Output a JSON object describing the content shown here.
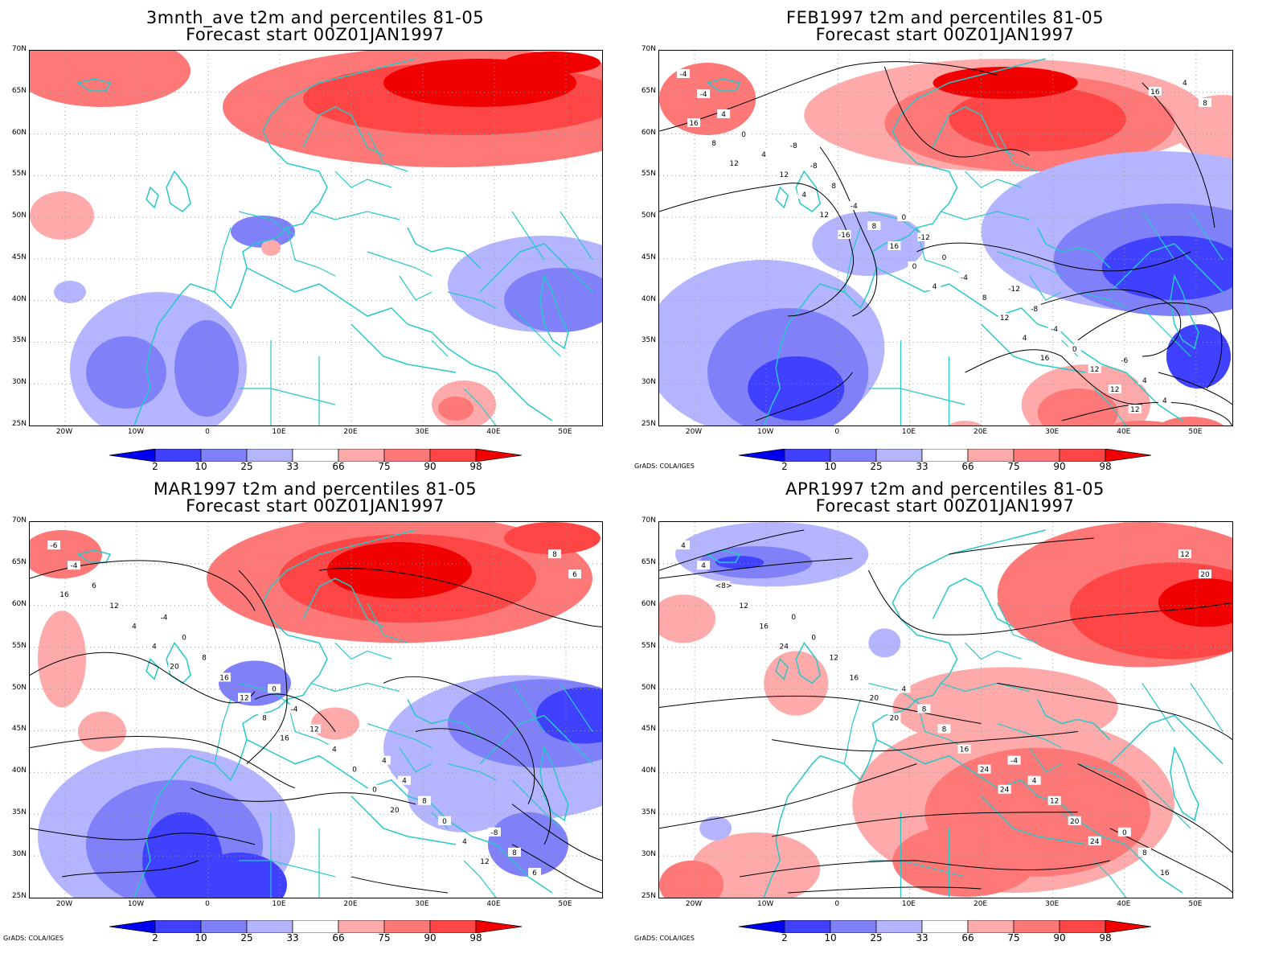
{
  "panels": [
    {
      "title1": "3mnth_ave t2m and percentiles 81-05",
      "title2": "Forecast start 00Z01JAN1997",
      "credit": ""
    },
    {
      "title1": "FEB1997 t2m and percentiles 81-05",
      "title2": "Forecast start 00Z01JAN1997",
      "credit": "GrADS: COLA/IGES"
    },
    {
      "title1": "MAR1997 t2m and percentiles 81-05",
      "title2": "Forecast start 00Z01JAN1997",
      "credit": "GrADS: COLA/IGES"
    },
    {
      "title1": "APR1997 t2m and percentiles 81-05",
      "title2": "Forecast start 00Z01JAN1997",
      "credit": "GrADS: COLA/IGES"
    }
  ],
  "lat_labels": [
    "70N",
    "65N",
    "60N",
    "55N",
    "50N",
    "45N",
    "40N",
    "35N",
    "30N",
    "25N"
  ],
  "lon_labels": [
    "20W",
    "10W",
    "0",
    "10E",
    "20E",
    "30E",
    "40E",
    "50E"
  ],
  "colorbar": {
    "labels": [
      "2",
      "10",
      "25",
      "33",
      "66",
      "75",
      "90",
      "98"
    ],
    "colors": [
      "#0000f0",
      "#4040ff",
      "#8080f8",
      "#b4b4ff",
      "#ffffff",
      "#ffaaaa",
      "#ff7878",
      "#ff4646",
      "#f00000"
    ]
  },
  "colors": {
    "coast": "#28c8c8",
    "contour": "#000000"
  },
  "contour_labels": {
    "p1": [],
    "p2": [
      "-4",
      "-8",
      "0",
      "-12",
      "-6",
      "-4",
      "-8",
      "-12",
      "-8",
      "4",
      "4",
      "8",
      "0",
      "-4",
      "4",
      "0",
      "-4",
      "-4",
      "0",
      "4",
      "4",
      "8",
      "8",
      "12",
      "8",
      "12",
      "16",
      "12",
      "12",
      "16",
      "4",
      "0",
      "4",
      "12",
      "8",
      "12",
      "4",
      "16",
      "16",
      "12",
      "-16"
    ],
    "p3": [
      "-6",
      "-4",
      "0",
      "4",
      "-8",
      "-4",
      "0",
      "-4",
      "4",
      "8",
      "6",
      "8",
      "12",
      "8",
      "6",
      "12",
      "16",
      "4",
      "0",
      "8",
      "4",
      "12",
      "0",
      "4",
      "6",
      "4",
      "8",
      "0",
      "12",
      "16",
      "20",
      "16",
      "20"
    ],
    "p4": [
      "4",
      "0",
      "4",
      "-4",
      "0",
      "4",
      "0",
      "8",
      "4",
      "8",
      "<8>",
      "12",
      "8",
      "12",
      "16",
      "12",
      "16",
      "16",
      "20",
      "12",
      "16",
      "20",
      "24",
      "24",
      "20",
      "24",
      "20",
      "24"
    ]
  }
}
